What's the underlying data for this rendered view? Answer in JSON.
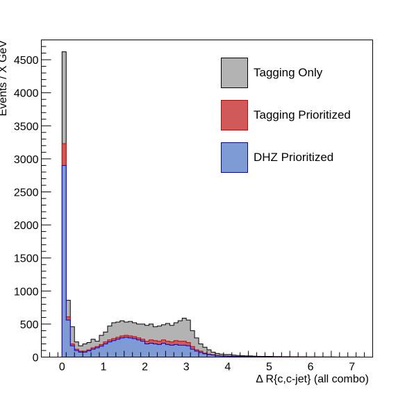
{
  "chart_data": {
    "type": "histogram",
    "title": "",
    "xlabel": "Δ R{c,c-jet}  (all combo)",
    "ylabel": "Events / X GeV",
    "xlim": [
      -0.5,
      7.5
    ],
    "ylim": [
      0,
      4800
    ],
    "bin_width": 0.1,
    "x_ticks": [
      0,
      1,
      2,
      3,
      4,
      5,
      6,
      7
    ],
    "y_ticks": [
      0,
      500,
      1000,
      1500,
      2000,
      2500,
      3000,
      3500,
      4000,
      4500
    ],
    "legend_position": "top-right",
    "grid": false,
    "bin_edges_start": 0.0,
    "series": [
      {
        "name": "Tagging Only",
        "fill": "#b3b3b3",
        "stroke": "#000000",
        "values": [
          4620,
          860,
          460,
          230,
          170,
          200,
          220,
          270,
          240,
          330,
          380,
          470,
          520,
          530,
          550,
          530,
          540,
          520,
          500,
          500,
          480,
          500,
          460,
          470,
          490,
          510,
          480,
          520,
          550,
          590,
          560,
          400,
          290,
          200,
          150,
          110,
          75,
          55,
          45,
          40,
          40,
          30,
          25,
          22,
          18,
          18,
          15,
          12,
          10,
          10,
          10,
          8,
          8,
          6,
          6,
          5,
          5,
          4,
          4,
          3,
          3,
          3,
          2,
          2,
          2,
          2,
          1,
          1,
          1,
          1,
          1,
          1
        ]
      },
      {
        "name": "Tagging Prioritized",
        "fill": "#d05a5a",
        "stroke": "#cc0000",
        "values": [
          3230,
          610,
          200,
          120,
          90,
          90,
          110,
          140,
          160,
          190,
          230,
          260,
          280,
          300,
          320,
          330,
          320,
          310,
          290,
          270,
          240,
          260,
          250,
          240,
          260,
          240,
          230,
          250,
          240,
          240,
          220,
          160,
          110,
          90,
          60,
          45,
          35,
          25,
          20,
          18,
          16,
          12,
          10,
          9,
          8,
          7,
          6,
          5,
          4,
          4,
          3,
          3,
          2,
          2,
          2,
          1,
          1,
          1,
          1,
          1,
          1,
          1,
          0,
          0,
          0,
          0,
          0,
          0,
          0,
          0,
          0,
          0
        ]
      },
      {
        "name": "DHZ Prioritized",
        "fill": "#7f9bd6",
        "stroke": "#0000cc",
        "values": [
          2900,
          560,
          170,
          100,
          75,
          75,
          95,
          120,
          140,
          165,
          200,
          230,
          250,
          270,
          290,
          300,
          290,
          280,
          260,
          240,
          200,
          210,
          200,
          190,
          210,
          190,
          180,
          190,
          180,
          180,
          170,
          120,
          90,
          70,
          50,
          38,
          30,
          20,
          17,
          15,
          12,
          10,
          8,
          7,
          6,
          5,
          4,
          4,
          3,
          3,
          2,
          2,
          2,
          1,
          1,
          1,
          1,
          1,
          1,
          0,
          0,
          0,
          0,
          0,
          0,
          0,
          0,
          0,
          0,
          0,
          0,
          0
        ]
      }
    ]
  }
}
